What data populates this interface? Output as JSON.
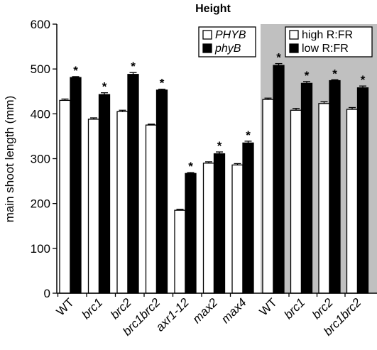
{
  "chart_data": {
    "type": "bar",
    "title": "Height",
    "ylabel": "main shoot length (mm)",
    "ylim": [
      0,
      600
    ],
    "yticks": [
      "0",
      "100",
      "200",
      "300",
      "400",
      "500",
      "600"
    ],
    "grid": false,
    "panels": [
      {
        "background": "#ffffff",
        "legend_placement": "top-right",
        "series": [
          {
            "name": "PHYB",
            "italic": true,
            "fill": "#ffffff",
            "values": [
              430,
              388,
              405,
              375,
              185,
              290,
              286
            ],
            "errors": [
              3,
              3,
              3,
              2,
              2,
              3,
              3
            ]
          },
          {
            "name": "phyB",
            "italic": true,
            "fill": "#000000",
            "values": [
              481,
              443,
              488,
              453,
              267,
              311,
              335
            ],
            "errors": [
              2,
              4,
              4,
              2,
              2,
              4,
              4
            ]
          }
        ],
        "categories": [
          {
            "label": "WT",
            "italic": false
          },
          {
            "label": "brc1",
            "italic": true
          },
          {
            "label": "brc2",
            "italic": true
          },
          {
            "label": "brc1brc2",
            "italic": true
          },
          {
            "label": "axr1-12",
            "italic": true
          },
          {
            "label": "max2",
            "italic": true
          },
          {
            "label": "max4",
            "italic": true
          }
        ],
        "significance": [
          "*",
          "*",
          "*",
          "*",
          "*",
          "*",
          "*"
        ]
      },
      {
        "background": "#c0c0c0",
        "legend_placement": "top-right",
        "series": [
          {
            "name": "high R:FR",
            "italic": false,
            "fill": "#ffffff",
            "values": [
              432,
              408,
              423,
              410
            ],
            "errors": [
              3,
              4,
              4,
              4
            ]
          },
          {
            "name": "low R:FR",
            "italic": false,
            "fill": "#000000",
            "values": [
              508,
              468,
              474,
              458
            ],
            "errors": [
              4,
              4,
              2,
              4
            ]
          }
        ],
        "categories": [
          {
            "label": "WT",
            "italic": false
          },
          {
            "label": "brc1",
            "italic": true
          },
          {
            "label": "brc2",
            "italic": true
          },
          {
            "label": "brc1brc2",
            "italic": true
          }
        ],
        "significance": [
          "*",
          "*",
          "*",
          "*"
        ]
      }
    ]
  }
}
